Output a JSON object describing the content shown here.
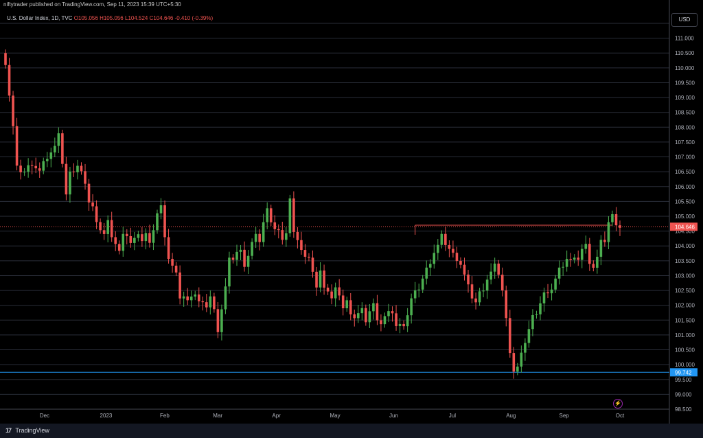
{
  "header": {
    "published": "niftytrader published on TradingView.com, Sep 11, 2023 15:39 UTC+5:30",
    "currency": "USD"
  },
  "legend": {
    "symbol": "U.S. Dollar Index, 1D, TVC",
    "open": "O105.056",
    "high": "H105.056",
    "low": "L104.524",
    "close": "C104.646",
    "change": "-0.410 (-0.39%)"
  },
  "footer": {
    "brand": "TradingView"
  },
  "colors": {
    "up": "#4caf50",
    "down": "#ef5350",
    "support": "#2196f3",
    "resistance": "#ef5350"
  },
  "chart_data": {
    "type": "candlestick",
    "title": "U.S. Dollar Index, 1D, TVC",
    "ylim": [
      98.5,
      111.5
    ],
    "y_ticks": [
      "98.500",
      "99.000",
      "99.500",
      "100.000",
      "100.500",
      "101.000",
      "101.500",
      "102.000",
      "102.500",
      "103.000",
      "103.500",
      "104.000",
      "104.500",
      "105.000",
      "105.500",
      "106.000",
      "106.500",
      "107.000",
      "107.500",
      "108.000",
      "108.500",
      "109.000",
      "109.500",
      "110.000",
      "110.500",
      "111.000",
      "111.500"
    ],
    "x_ticks": [
      "Dec",
      "2023",
      "Feb",
      "Mar",
      "Apr",
      "May",
      "Jun",
      "Jul",
      "Aug",
      "Sep",
      "Oct"
    ],
    "last_price_label": "104.646",
    "support_label": "99.742",
    "support_level": 99.742,
    "resistance_level": 104.7,
    "close_path": [
      [
        0,
        110.2
      ],
      [
        2,
        108.0
      ],
      [
        3,
        106.6
      ],
      [
        5,
        106.5
      ],
      [
        7,
        106.8
      ],
      [
        9,
        106.5
      ],
      [
        11,
        107.0
      ],
      [
        13,
        107.3
      ],
      [
        14,
        107.9
      ],
      [
        15,
        106.8
      ],
      [
        16,
        105.7
      ],
      [
        17,
        106.4
      ],
      [
        19,
        106.7
      ],
      [
        21,
        106.2
      ],
      [
        22,
        105.5
      ],
      [
        23,
        105.3
      ],
      [
        24,
        104.7
      ],
      [
        25,
        104.6
      ],
      [
        26,
        104.4
      ],
      [
        27,
        104.8
      ],
      [
        28,
        104.4
      ],
      [
        29,
        104.1
      ],
      [
        30,
        103.8
      ],
      [
        31,
        104.3
      ],
      [
        32,
        104.4
      ],
      [
        33,
        104.1
      ],
      [
        34,
        104.2
      ],
      [
        35,
        104.5
      ],
      [
        36,
        104.2
      ],
      [
        37,
        104.4
      ],
      [
        38,
        104.0
      ],
      [
        39,
        104.6
      ],
      [
        40,
        105.1
      ],
      [
        41,
        105.3
      ],
      [
        42,
        104.4
      ],
      [
        43,
        103.6
      ],
      [
        44,
        103.3
      ],
      [
        45,
        103.0
      ],
      [
        46,
        102.3
      ],
      [
        47,
        102.3
      ],
      [
        48,
        102.1
      ],
      [
        49,
        102.4
      ],
      [
        50,
        102.4
      ],
      [
        51,
        102.1
      ],
      [
        52,
        102.0
      ],
      [
        53,
        102.0
      ],
      [
        54,
        102.3
      ],
      [
        55,
        101.8
      ],
      [
        56,
        101.2
      ],
      [
        57,
        101.9
      ],
      [
        58,
        102.6
      ],
      [
        59,
        103.5
      ],
      [
        60,
        103.6
      ],
      [
        61,
        103.8
      ],
      [
        62,
        103.8
      ],
      [
        63,
        103.4
      ],
      [
        64,
        103.7
      ],
      [
        65,
        104.1
      ],
      [
        66,
        104.3
      ],
      [
        67,
        104.2
      ],
      [
        68,
        104.8
      ],
      [
        69,
        105.2
      ],
      [
        70,
        104.9
      ],
      [
        71,
        104.6
      ],
      [
        72,
        104.5
      ],
      [
        73,
        104.1
      ],
      [
        74,
        104.5
      ],
      [
        75,
        105.6
      ],
      [
        76,
        104.4
      ],
      [
        77,
        104.3
      ],
      [
        78,
        103.9
      ],
      [
        79,
        103.6
      ],
      [
        80,
        103.5
      ],
      [
        81,
        103.2
      ],
      [
        82,
        102.6
      ],
      [
        83,
        103.1
      ],
      [
        84,
        102.7
      ],
      [
        85,
        102.5
      ],
      [
        86,
        102.2
      ],
      [
        87,
        102.5
      ],
      [
        88,
        102.4
      ],
      [
        89,
        101.9
      ],
      [
        90,
        102.1
      ],
      [
        91,
        101.8
      ],
      [
        92,
        101.6
      ],
      [
        93,
        101.7
      ],
      [
        94,
        101.8
      ],
      [
        95,
        101.5
      ],
      [
        96,
        101.8
      ],
      [
        97,
        102.0
      ],
      [
        98,
        101.6
      ],
      [
        99,
        101.4
      ],
      [
        100,
        101.6
      ],
      [
        101,
        101.7
      ],
      [
        102,
        101.8
      ],
      [
        103,
        101.3
      ],
      [
        104,
        101.3
      ],
      [
        105,
        101.4
      ],
      [
        106,
        101.7
      ],
      [
        107,
        102.2
      ],
      [
        108,
        102.4
      ],
      [
        109,
        102.6
      ],
      [
        110,
        102.9
      ],
      [
        111,
        103.2
      ],
      [
        112,
        103.5
      ],
      [
        113,
        103.8
      ],
      [
        114,
        104.0
      ],
      [
        115,
        104.3
      ],
      [
        116,
        104.1
      ],
      [
        117,
        103.9
      ],
      [
        118,
        103.7
      ],
      [
        119,
        103.6
      ],
      [
        120,
        103.4
      ],
      [
        121,
        103.0
      ],
      [
        122,
        102.6
      ],
      [
        123,
        102.3
      ],
      [
        124,
        102.1
      ],
      [
        125,
        102.4
      ],
      [
        126,
        102.6
      ],
      [
        127,
        102.9
      ],
      [
        128,
        103.1
      ],
      [
        129,
        103.3
      ],
      [
        130,
        103.1
      ],
      [
        131,
        102.5
      ],
      [
        132,
        101.5
      ],
      [
        133,
        100.5
      ],
      [
        134,
        99.8
      ],
      [
        135,
        99.9
      ],
      [
        136,
        100.3
      ],
      [
        137,
        100.8
      ],
      [
        138,
        101.2
      ],
      [
        139,
        101.6
      ],
      [
        140,
        101.8
      ],
      [
        141,
        102.1
      ],
      [
        142,
        102.4
      ],
      [
        143,
        102.3
      ],
      [
        144,
        102.6
      ],
      [
        145,
        102.9
      ],
      [
        146,
        103.2
      ],
      [
        147,
        103.4
      ],
      [
        148,
        103.6
      ],
      [
        149,
        103.5
      ],
      [
        150,
        103.5
      ],
      [
        151,
        103.6
      ],
      [
        152,
        103.9
      ],
      [
        153,
        104.0
      ],
      [
        154,
        103.5
      ],
      [
        155,
        103.3
      ],
      [
        156,
        103.6
      ],
      [
        157,
        104.1
      ],
      [
        158,
        104.2
      ],
      [
        159,
        104.8
      ],
      [
        160,
        105.0
      ],
      [
        161,
        104.8
      ],
      [
        162,
        104.646
      ]
    ]
  }
}
